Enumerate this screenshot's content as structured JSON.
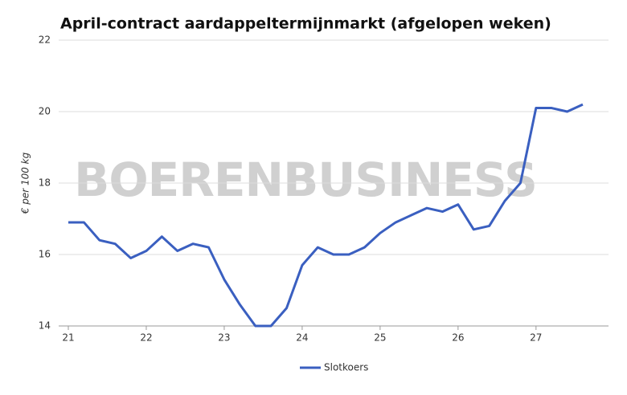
{
  "chart_data": {
    "type": "line",
    "title": "April-contract aardappeltermijnmarkt (afgelopen weken)",
    "y_label": "€ per 100 kg",
    "watermark": "BOERENBUSINESS",
    "x": [
      21,
      21.2,
      21.4,
      21.6,
      21.8,
      22,
      22.2,
      22.4,
      22.6,
      22.8,
      23,
      23.2,
      23.4,
      23.6,
      23.8,
      24,
      24.2,
      24.4,
      24.6,
      24.8,
      25,
      25.2,
      25.4,
      25.6,
      25.8,
      26,
      26.2,
      26.4,
      26.6,
      26.8,
      27,
      27.2,
      27.4,
      27.6
    ],
    "series": [
      {
        "name": "Slotkoers",
        "color": "#3a5fc0",
        "values": [
          16.9,
          16.9,
          16.4,
          16.3,
          15.9,
          16.1,
          16.5,
          16.1,
          16.3,
          16.2,
          15.3,
          14.6,
          14.0,
          14.0,
          14.5,
          15.7,
          16.2,
          16.0,
          16.0,
          16.2,
          16.6,
          16.9,
          17.1,
          17.3,
          17.2,
          17.4,
          16.7,
          16.8,
          17.5,
          18.0,
          20.1,
          20.1,
          20.0,
          20.2
        ]
      }
    ],
    "xlim": [
      21,
      27.93
    ],
    "xticks": [
      21,
      22,
      23,
      24,
      25,
      26,
      27
    ],
    "ylim": [
      14,
      22
    ],
    "yticks": [
      14,
      16,
      18,
      20,
      22
    ],
    "grid": true,
    "legend": "bottom"
  }
}
